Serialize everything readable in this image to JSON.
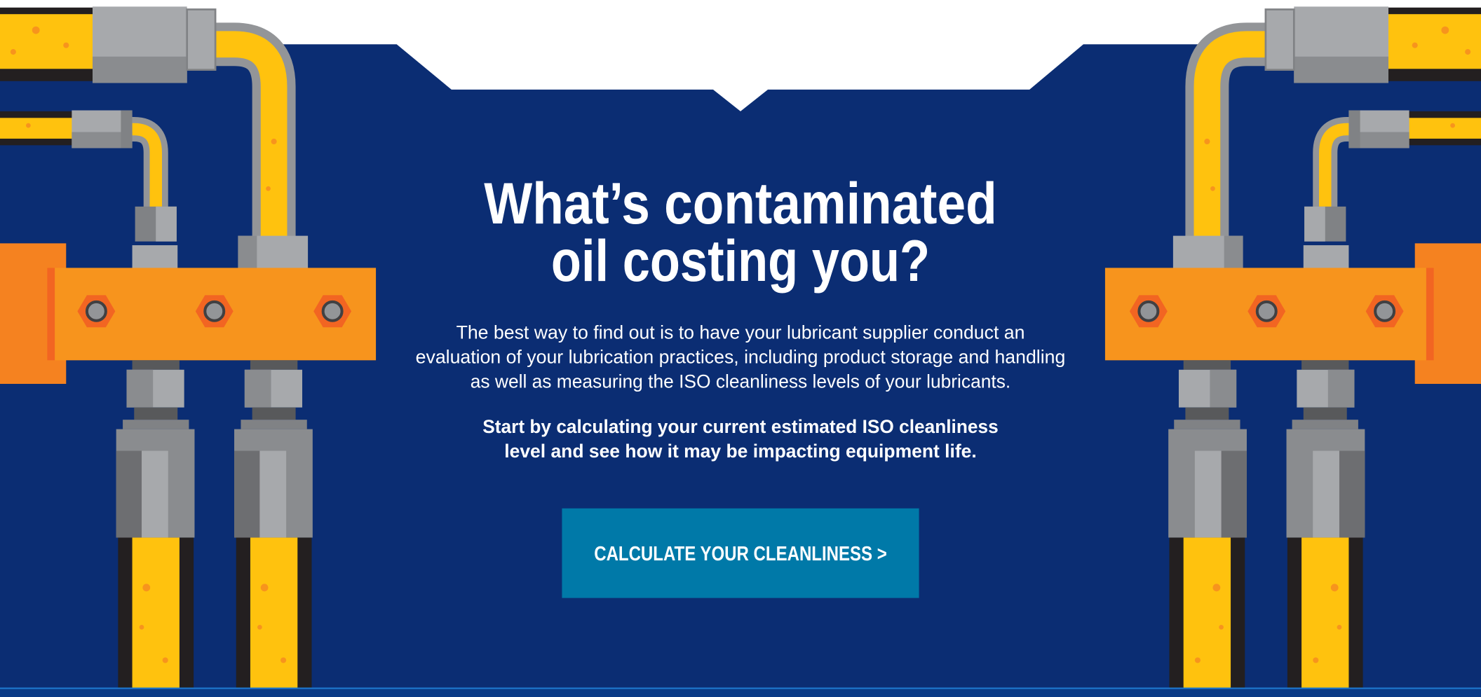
{
  "hero": {
    "title": [
      "What’s contaminated",
      "oil costing you?"
    ],
    "body": [
      "The best way to find out is to have your lubricant supplier conduct an",
      "evaluation of your lubrication practices, including product storage and handling",
      "as well as measuring the ISO cleanliness levels of your lubricants."
    ],
    "emphasis": [
      "Start by calculating your current estimated ISO cleanliness",
      "level and see how it may be impacting equipment life."
    ],
    "button": "CALCULATE YOUR CLEANLINESS >"
  }
}
